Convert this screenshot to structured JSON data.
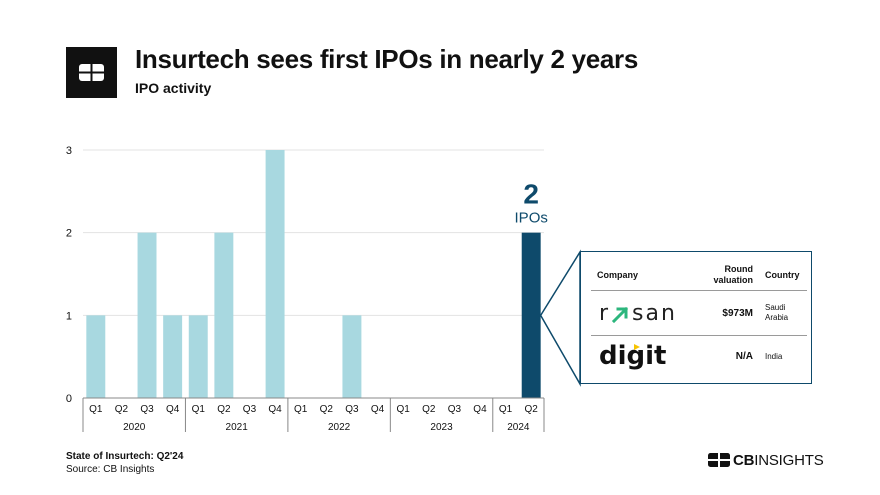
{
  "header": {
    "title": "Insurtech sees first IPOs in nearly 2 years",
    "subtitle": "IPO activity"
  },
  "chart_data": {
    "type": "bar",
    "categories": [
      "Q1",
      "Q2",
      "Q3",
      "Q4",
      "Q1",
      "Q2",
      "Q3",
      "Q4",
      "Q1",
      "Q2",
      "Q3",
      "Q4",
      "Q1",
      "Q2",
      "Q3",
      "Q4",
      "Q1",
      "Q2"
    ],
    "years": [
      "2020",
      "2021",
      "2022",
      "2023",
      "2024"
    ],
    "values": [
      1,
      0,
      2,
      1,
      1,
      2,
      0,
      3,
      0,
      0,
      1,
      0,
      0,
      0,
      0,
      0,
      0,
      2
    ],
    "ylim": [
      0,
      3
    ],
    "yticks": [
      0,
      1,
      2,
      3
    ],
    "xlabel": "",
    "ylabel": "",
    "grid": true,
    "highlight_index": 17,
    "highlight_value_label": "2",
    "highlight_unit_label": "IPOs",
    "colors": {
      "bar": "#a8d8e0",
      "highlight": "#0e4a6b"
    }
  },
  "table": {
    "headers": {
      "company": "Company",
      "valuation_line1": "Round",
      "valuation_line2": "valuation",
      "country": "Country"
    },
    "rows": [
      {
        "company": "rasan",
        "valuation": "$973M",
        "country_line1": "Saudi",
        "country_line2": "Arabia"
      },
      {
        "company": "digit",
        "valuation": "N/A",
        "country_line1": "India",
        "country_line2": ""
      }
    ]
  },
  "footer": {
    "report": "State of Insurtech: Q2'24",
    "source": "Source: CB Insights",
    "brand_cb": "CB",
    "brand_rest": "INSIGHTS"
  }
}
